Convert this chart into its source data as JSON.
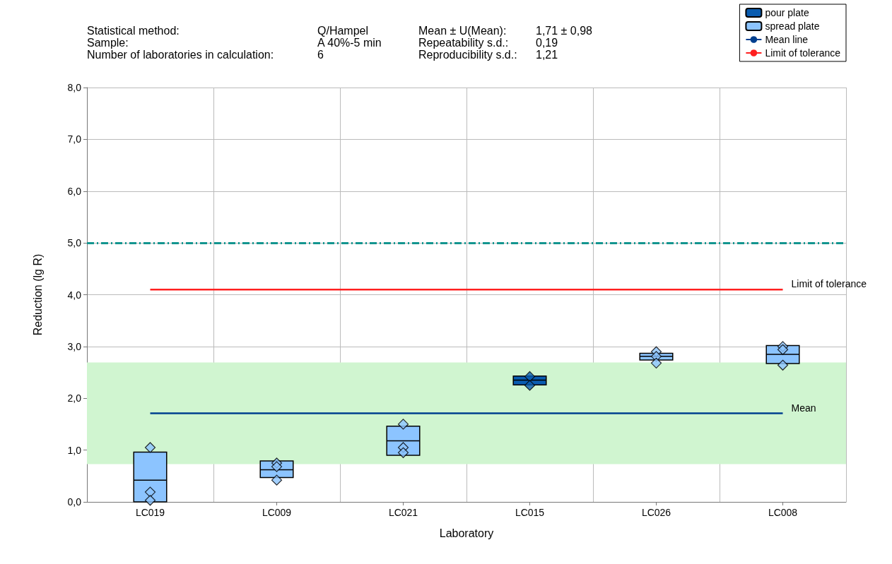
{
  "chart_data": {
    "type": "box",
    "annotations": [
      "Statistical method:",
      "Q/Hampel",
      "Mean ± U(Mean):",
      "1,71 ± 0,98",
      "Sample:",
      "A 40%-5 min",
      "Repeatability s.d.:",
      "0,19",
      "Number of laboratories in calculation:",
      "6",
      "Reproducibility s.d.:",
      "1,21",
      "Mean",
      "Limit of tolerance"
    ],
    "xlabel": "Laboratory",
    "ylabel": "Reduction (lg R)",
    "categories": [
      "LC019",
      "LC009",
      "LC021",
      "LC015",
      "LC026",
      "LC008"
    ],
    "series": [
      {
        "name": "pour plate",
        "color": "#0a5cb0",
        "boxes": [
          null,
          null,
          null,
          {
            "low": 2.26,
            "q1": 2.26,
            "median": 2.35,
            "q3": 2.43,
            "high": 2.43
          },
          null,
          null
        ]
      },
      {
        "name": "spread plate",
        "color": "#8cc4ff",
        "boxes": [
          {
            "low": 0,
            "q1": 0,
            "median": 0.42,
            "q3": 0.96,
            "high": 0.96
          },
          {
            "low": 0.47,
            "q1": 0.47,
            "median": 0.62,
            "q3": 0.79,
            "high": 0.79
          },
          {
            "low": 0.9,
            "q1": 0.9,
            "median": 1.18,
            "q3": 1.46,
            "high": 1.46
          },
          null,
          {
            "low": 2.74,
            "q1": 2.74,
            "median": 2.81,
            "q3": 2.87,
            "high": 2.87
          },
          {
            "low": 2.67,
            "q1": 2.67,
            "median": 2.85,
            "q3": 3.02,
            "high": 3.02
          }
        ]
      },
      {
        "type": "line",
        "name": "Mean line",
        "color": "#003f8f",
        "marker": "none",
        "values": [
          1.71,
          1.71,
          1.71,
          1.71,
          1.71,
          1.71
        ]
      },
      {
        "type": "line",
        "name": "Limit of tolerance",
        "color": "#ff2020",
        "marker": "none",
        "values": [
          4.1,
          4.1,
          4.1,
          4.1,
          4.1,
          4.1
        ]
      },
      {
        "type": "scatter",
        "color": "#0a5cb0",
        "marker": "diamond",
        "x": [
          "LC015",
          "LC015"
        ],
        "values": [
          2.42,
          2.25
        ]
      },
      {
        "type": "scatter",
        "color": "#8cc4ff",
        "marker": "diamond",
        "x": [
          "LC019",
          "LC019",
          "LC019",
          "LC009",
          "LC009",
          "LC009",
          "LC021",
          "LC021",
          "LC021",
          "LC026",
          "LC026",
          "LC026",
          "LC008",
          "LC008",
          "LC008"
        ],
        "values": [
          1.05,
          0.19,
          0.03,
          0.75,
          0.68,
          0.42,
          1.5,
          1.05,
          0.95,
          2.9,
          2.81,
          2.68,
          3.0,
          2.94,
          2.64
        ]
      }
    ],
    "ref_lines": [
      {
        "axis": "y",
        "value": 5,
        "color": "#13958f",
        "line_style": "dashed"
      }
    ],
    "bands": [
      {
        "axis": "y",
        "from": 0.73,
        "to": 2.69,
        "color": "#d0f5d0"
      }
    ],
    "ylim": [
      0,
      8
    ],
    "yticks": [
      {
        "value": 0,
        "label": "0,0"
      },
      {
        "value": 1,
        "label": "1,0"
      },
      {
        "value": 2,
        "label": "2,0"
      },
      {
        "value": 3,
        "label": "3,0"
      },
      {
        "value": 4,
        "label": "4,0"
      },
      {
        "value": 5,
        "label": "5,0"
      },
      {
        "value": 6,
        "label": "6,0"
      },
      {
        "value": 7,
        "label": "7,0"
      },
      {
        "value": 8,
        "label": "8,0"
      }
    ],
    "grid": true,
    "legend": "top right"
  }
}
